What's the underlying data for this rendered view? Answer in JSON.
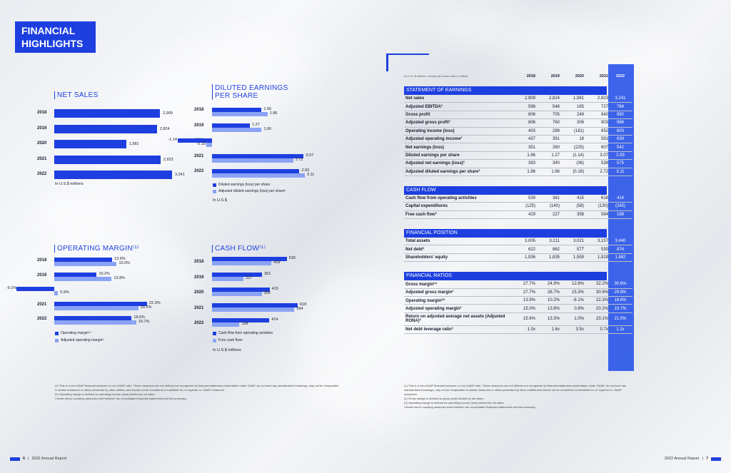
{
  "title": "FINANCIAL HIGHLIGHTS",
  "title_lines": [
    "FINANCIAL",
    "HIGHLIGHTS"
  ],
  "colors": {
    "primary": "#1d3fe0",
    "secondary": "#8aa3f5"
  },
  "net_sales": {
    "title": "NET SALES",
    "unit": "In U.S.$ millions",
    "chart_data": {
      "type": "bar",
      "categories": [
        "2018",
        "2019",
        "2020",
        "2021",
        "2022"
      ],
      "values": [
        2909,
        2824,
        1981,
        2923,
        3241
      ],
      "labels": [
        "2,909",
        "2,824",
        "1,981",
        "2,923",
        "3,241"
      ]
    }
  },
  "eps": {
    "title_lines": [
      "DILUTED EARNINGS",
      "PER SHARE"
    ],
    "unit": "In U.S.$",
    "legend": [
      "Diluted earnings (loss) per share",
      "Adjusted diluted earnings (loss) per share²"
    ],
    "chart_data": {
      "type": "bar",
      "categories": [
        "2018",
        "2019",
        "2020",
        "2021",
        "2022"
      ],
      "series": [
        {
          "name": "Diluted earnings (loss) per share",
          "values": [
            1.66,
            1.27,
            -1.14,
            3.07,
            2.93
          ],
          "labels": [
            "1.66",
            "1.27",
            "-1.14",
            "3.07",
            "2.93"
          ]
        },
        {
          "name": "Adjusted diluted earnings (loss) per share²",
          "values": [
            1.86,
            1.66,
            -0.18,
            2.72,
            3.11
          ],
          "labels": [
            "1.86",
            "1.66",
            "-0.18",
            "2.72",
            "3.11"
          ]
        }
      ]
    }
  },
  "op_margin": {
    "title": "OPERATING MARGIN⁽¹⁾",
    "legend": [
      "Operating margin⁽¹⁾",
      "Adjusted operating margin²"
    ],
    "chart_data": {
      "type": "bar",
      "categories": [
        "2018",
        "2019",
        "2020",
        "2021",
        "2022"
      ],
      "series": [
        {
          "name": "Operating margin⁽¹⁾",
          "values": [
            13.9,
            10.2,
            -9.1,
            22.3,
            18.6
          ],
          "labels": [
            "13.9%",
            "10.2%",
            "-9.1%",
            "22.3%",
            "18.6%"
          ]
        },
        {
          "name": "Adjusted operating margin²",
          "values": [
            15.0,
            13.8,
            0.9,
            20.2,
            19.7
          ],
          "labels": [
            "15.0%",
            "13.8%",
            "0.9%",
            "20.2%",
            "19.7%"
          ]
        }
      ]
    }
  },
  "cash_flow": {
    "title": "CASH FLOW⁽¹⁾",
    "unit": "In U.S.$ millions",
    "legend": [
      "Cash flow from operating activities",
      "Free cash flow¹"
    ],
    "chart_data": {
      "type": "bar",
      "categories": [
        "2018",
        "2019",
        "2020",
        "2021",
        "2022"
      ],
      "series": [
        {
          "name": "Cash flow from operating activities",
          "values": [
            539,
            361,
            415,
            618,
            414
          ],
          "labels": [
            "539",
            "361",
            "415",
            "618",
            "414"
          ]
        },
        {
          "name": "Free cash flow¹",
          "values": [
            429,
            227,
            358,
            594,
            198
          ],
          "labels": [
            "429",
            "227",
            "358",
            "594",
            "198"
          ]
        }
      ]
    }
  },
  "table": {
    "header_note": "(In U.S. $ millions, except per share data or ratios)",
    "years": [
      "2018",
      "2019",
      "2020",
      "2021",
      "2022"
    ],
    "sections": [
      {
        "title": "STATEMENT OF EARNINGS",
        "rows": [
          {
            "label": "Net sales",
            "values": [
              "2,909",
              "2,824",
              "1,981",
              "2,923",
              "3,241"
            ]
          },
          {
            "label": "Adjusted EBITDA³",
            "values": [
              "596",
              "548",
              "165",
              "727",
              "764"
            ]
          },
          {
            "label": "Gross profit",
            "values": [
              "806",
              "705",
              "249",
              "940",
              "992"
            ]
          },
          {
            "label": "Adjusted gross profit³",
            "values": [
              "806",
              "760",
              "306",
              "903",
              "966"
            ]
          },
          {
            "label": "Operating income (loss)",
            "values": [
              "403",
              "289",
              "(181)",
              "652",
              "603"
            ]
          },
          {
            "label": "Adjusted operating income³",
            "values": [
              "437",
              "391",
              "18",
              "591",
              "639"
            ]
          },
          {
            "label": "Net earnings (loss)",
            "values": [
              "351",
              "260",
              "(225)",
              "607",
              "542"
            ]
          },
          {
            "label": "Diluted earnings per share",
            "values": [
              "1.66",
              "1.27",
              "(1.14)",
              "3.07",
              "2.93"
            ]
          },
          {
            "label": "Adjusted net earnings (loss)³",
            "values": [
              "393",
              "340",
              "(36)",
              "538",
              "575"
            ]
          },
          {
            "label": "Adjusted diluted earnings per share³",
            "values": [
              "1.86",
              "1.66",
              "(0.18)",
              "2.72",
              "3.11"
            ]
          }
        ]
      },
      {
        "title": "CASH FLOW",
        "rows": [
          {
            "label": "Cash flow from operating activities",
            "values": [
              "539",
              "361",
              "415",
              "618",
              "414"
            ]
          },
          {
            "label": "Capital expenditures",
            "values": [
              "(125)",
              "(140)",
              "(58)",
              "(130)",
              "(245)"
            ]
          },
          {
            "label": "Free cash flow³",
            "values": [
              "429",
              "227",
              "358",
              "594",
              "198"
            ]
          }
        ]
      },
      {
        "title": "FINANCIAL POSITION",
        "rows": [
          {
            "label": "Total assets",
            "values": [
              "3,005",
              "3,211",
              "3,021",
              "3,137",
              "3,440"
            ]
          },
          {
            "label": "Net debt³",
            "values": [
              "622",
              "862",
              "577",
              "530",
              "874"
            ]
          },
          {
            "label": "Shareholders' equity",
            "values": [
              "1,936",
              "1,835",
              "1,559",
              "1,919",
              "1,882"
            ]
          }
        ]
      },
      {
        "title": "FINANCIAL RATIOS",
        "rows": [
          {
            "label": "Gross margin⁽¹⁾",
            "values": [
              "27.7%",
              "24.9%",
              "12.6%",
              "32.2%",
              "30.6%"
            ]
          },
          {
            "label": "Adjusted gross margin³",
            "values": [
              "27.7%",
              "26.7%",
              "15.3%",
              "30.9%",
              "29.8%"
            ]
          },
          {
            "label": "Operating margin⁽²⁾",
            "values": [
              "13.9%",
              "10.2%",
              "-9.1%",
              "22.3%",
              "18.6%"
            ]
          },
          {
            "label": "Adjusted operating margin³",
            "values": [
              "15.0%",
              "13.8%",
              "0.9%",
              "20.2%",
              "19.7%"
            ]
          },
          {
            "label": "Return on adjusted average net assets (Adjusted RONA)³",
            "values": [
              "15.6%",
              "13.3%",
              "1.0%",
              "23.1%",
              "21.0%"
            ]
          },
          {
            "label": "Net debt leverage ratio³",
            "values": [
              "1.0x",
              "1.6x",
              "3.5x",
              "0.7x",
              "1.1x"
            ]
          }
        ]
      }
    ]
  },
  "notes_left": [
    "(1) This is a non-GAAP financial measure or non-GAAP ratio. These measures are not defined nor recognized by financial statement presentation under GAAP, do not have any standardized meanings, may not be comparable to similar measures or ratios presented by other entities and should not be considered a substitute for, or superior to, GAAP measures.",
    "(2) Operating margin is defined as operating income (loss) divided by net sales.",
    "Certain minor rounding variances exist between the consolidated financial statements and this summary."
  ],
  "notes_right": [
    "(1) This is a non-GAAP financial measure or non-GAAP ratio. These measures are not defined nor recognized by financial statement presentation under GAAP, do not have any standardized meanings, may not be comparable to similar measures or ratios presented by other entities and should not be considered a substitute for, or superior to, GAAP measures.",
    "(2) Gross margin is defined as gross profit divided by net sales.",
    "(3) Operating margin is defined as operating income (loss) divided by net sales.",
    "Certain minor rounding variances exist between the consolidated financial statements and this summary."
  ],
  "footer": {
    "left_page": "6",
    "left_text": "2022 Annual Report",
    "right_text": "2022 Annual Report",
    "right_page": "7"
  }
}
